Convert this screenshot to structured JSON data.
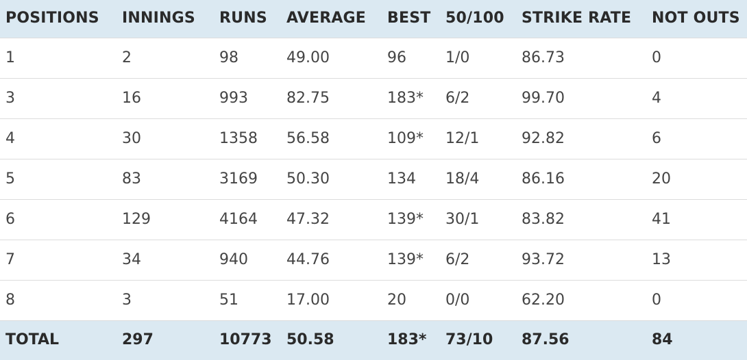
{
  "table": {
    "headers": [
      "POSITIONS",
      "INNINGS",
      "RUNS",
      "AVERAGE",
      "BEST",
      "50/100",
      "STRIKE RATE",
      "NOT OUTS"
    ],
    "rows": [
      [
        "1",
        "2",
        "98",
        "49.00",
        "96",
        "1/0",
        "86.73",
        "0"
      ],
      [
        "3",
        "16",
        "993",
        "82.75",
        "183*",
        "6/2",
        "99.70",
        "4"
      ],
      [
        "4",
        "30",
        "1358",
        "56.58",
        "109*",
        "12/1",
        "92.82",
        "6"
      ],
      [
        "5",
        "83",
        "3169",
        "50.30",
        "134",
        "18/4",
        "86.16",
        "20"
      ],
      [
        "6",
        "129",
        "4164",
        "47.32",
        "139*",
        "30/1",
        "83.82",
        "41"
      ],
      [
        "7",
        "34",
        "940",
        "44.76",
        "139*",
        "6/2",
        "93.72",
        "13"
      ],
      [
        "8",
        "3",
        "51",
        "17.00",
        "20",
        "0/0",
        "62.20",
        "0"
      ]
    ],
    "total": [
      "TOTAL",
      "297",
      "10773",
      "50.58",
      "183*",
      "73/10",
      "87.56",
      "84"
    ]
  },
  "colors": {
    "header_bg": "#dbe9f2",
    "row_border": "#dcdcdc",
    "text": "#444444"
  }
}
